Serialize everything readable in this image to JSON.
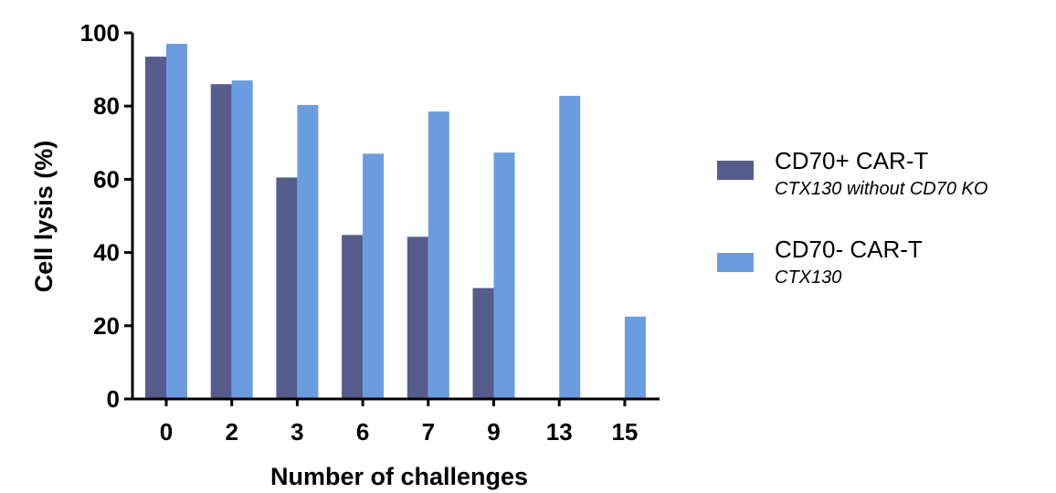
{
  "chart_data": {
    "type": "bar",
    "categories": [
      "0",
      "2",
      "3",
      "6",
      "7",
      "9",
      "13",
      "15"
    ],
    "series": [
      {
        "name": "CD70+ CAR-T",
        "subtitle": "CTX130 without CD70 KO",
        "color": "#565d8c",
        "values": [
          93.5,
          86,
          60.5,
          44.8,
          44.3,
          30.3,
          null,
          null
        ]
      },
      {
        "name": "CD70- CAR-T",
        "subtitle": "CTX130",
        "color": "#6b9ce0",
        "values": [
          97,
          87,
          80.3,
          67,
          78.5,
          67.3,
          82.8,
          22.5
        ]
      }
    ],
    "xlabel": "Number of challenges",
    "ylabel": "Cell lysis (%)",
    "ylim": [
      0,
      100
    ],
    "yticks": [
      0,
      20,
      40,
      60,
      80,
      100
    ],
    "legend_position": "right",
    "grid": false
  }
}
